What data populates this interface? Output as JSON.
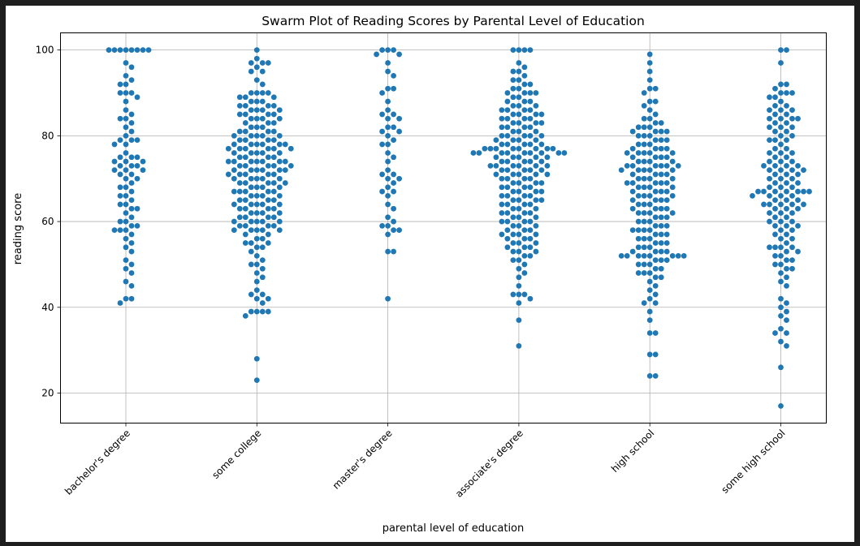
{
  "chart_data": {
    "type": "scatter",
    "subtype": "swarm",
    "title": "Swarm Plot of Reading Scores by Parental Level of Education",
    "xlabel": "parental level of education",
    "ylabel": "reading score",
    "ylim": [
      13,
      104
    ],
    "yticks": [
      20,
      40,
      60,
      80,
      100
    ],
    "grid": true,
    "marker_color": "#1f77b4",
    "categories": [
      "bachelor's degree",
      "some college",
      "master's degree",
      "associate's degree",
      "high school",
      "some high school"
    ],
    "series": [
      {
        "name": "bachelor's degree",
        "values": [
          100,
          100,
          100,
          100,
          100,
          100,
          100,
          100,
          97,
          96,
          94,
          93,
          92,
          92,
          90,
          90,
          90,
          89,
          88,
          86,
          85,
          84,
          84,
          83,
          82,
          81,
          80,
          79,
          79,
          79,
          78,
          78,
          76,
          75,
          75,
          75,
          74,
          74,
          74,
          73,
          73,
          73,
          72,
          72,
          72,
          71,
          71,
          70,
          70,
          69,
          68,
          68,
          67,
          66,
          66,
          65,
          64,
          64,
          63,
          63,
          62,
          61,
          60,
          60,
          59,
          59,
          58,
          58,
          58,
          57,
          56,
          55,
          54,
          53,
          51,
          50,
          49,
          48,
          46,
          45,
          42,
          42,
          41
        ]
      },
      {
        "name": "some college",
        "values": [
          100,
          98,
          97,
          97,
          97,
          96,
          95,
          95,
          93,
          92,
          90,
          90,
          90,
          90,
          89,
          89,
          89,
          88,
          88,
          88,
          87,
          87,
          87,
          87,
          86,
          86,
          86,
          86,
          85,
          85,
          85,
          85,
          84,
          84,
          84,
          84,
          83,
          83,
          83,
          82,
          82,
          82,
          81,
          81,
          81,
          81,
          80,
          80,
          80,
          80,
          80,
          79,
          79,
          79,
          79,
          78,
          78,
          78,
          78,
          78,
          78,
          77,
          77,
          77,
          77,
          77,
          77,
          76,
          76,
          76,
          76,
          76,
          75,
          75,
          75,
          75,
          74,
          74,
          74,
          74,
          74,
          74,
          74,
          73,
          73,
          73,
          73,
          73,
          72,
          72,
          72,
          72,
          72,
          72,
          71,
          71,
          71,
          71,
          71,
          70,
          70,
          70,
          70,
          70,
          69,
          69,
          69,
          69,
          69,
          68,
          68,
          68,
          68,
          67,
          67,
          67,
          67,
          67,
          66,
          66,
          66,
          66,
          65,
          65,
          65,
          65,
          64,
          64,
          64,
          64,
          64,
          63,
          63,
          63,
          63,
          62,
          62,
          62,
          62,
          61,
          61,
          61,
          61,
          60,
          60,
          60,
          60,
          60,
          59,
          59,
          59,
          59,
          58,
          58,
          58,
          58,
          58,
          57,
          57,
          56,
          56,
          55,
          55,
          55,
          54,
          54,
          53,
          52,
          51,
          50,
          50,
          49,
          48,
          47,
          46,
          44,
          43,
          43,
          42,
          42,
          41,
          39,
          39,
          39,
          39,
          38,
          28,
          23
        ]
      },
      {
        "name": "master's degree",
        "values": [
          100,
          100,
          100,
          99,
          99,
          97,
          95,
          94,
          91,
          91,
          90,
          88,
          86,
          85,
          85,
          84,
          84,
          82,
          82,
          81,
          81,
          80,
          79,
          78,
          78,
          76,
          75,
          74,
          72,
          71,
          71,
          70,
          70,
          69,
          68,
          67,
          67,
          66,
          64,
          63,
          61,
          60,
          59,
          59,
          58,
          58,
          57,
          53,
          53,
          42
        ]
      },
      {
        "name": "associate's degree",
        "values": [
          100,
          100,
          100,
          100,
          97,
          96,
          95,
          95,
          94,
          93,
          93,
          92,
          92,
          91,
          91,
          90,
          90,
          90,
          90,
          89,
          89,
          88,
          88,
          88,
          87,
          87,
          87,
          86,
          86,
          86,
          86,
          85,
          85,
          85,
          85,
          84,
          84,
          84,
          84,
          83,
          83,
          83,
          83,
          82,
          82,
          82,
          82,
          81,
          81,
          81,
          80,
          80,
          80,
          80,
          80,
          79,
          79,
          79,
          79,
          78,
          78,
          78,
          78,
          78,
          77,
          77,
          77,
          77,
          77,
          77,
          77,
          77,
          76,
          76,
          76,
          76,
          76,
          76,
          76,
          76,
          76,
          75,
          75,
          75,
          75,
          75,
          74,
          74,
          74,
          74,
          74,
          73,
          73,
          73,
          73,
          73,
          73,
          72,
          72,
          72,
          72,
          72,
          71,
          71,
          71,
          71,
          71,
          70,
          70,
          70,
          70,
          69,
          69,
          69,
          69,
          68,
          68,
          68,
          68,
          67,
          67,
          67,
          67,
          66,
          66,
          66,
          66,
          65,
          65,
          65,
          65,
          64,
          64,
          64,
          64,
          63,
          63,
          63,
          62,
          62,
          62,
          62,
          61,
          61,
          61,
          60,
          60,
          60,
          60,
          59,
          59,
          59,
          58,
          58,
          58,
          57,
          57,
          57,
          57,
          56,
          56,
          56,
          55,
          55,
          55,
          54,
          54,
          54,
          53,
          53,
          53,
          52,
          52,
          51,
          51,
          50,
          49,
          48,
          47,
          45,
          43,
          43,
          43,
          42,
          41,
          37,
          31
        ]
      },
      {
        "name": "high school",
        "values": [
          99,
          97,
          95,
          93,
          91,
          91,
          90,
          88,
          88,
          87,
          86,
          85,
          84,
          84,
          83,
          83,
          82,
          82,
          82,
          81,
          81,
          81,
          81,
          80,
          80,
          80,
          79,
          79,
          79,
          78,
          78,
          78,
          77,
          77,
          77,
          77,
          76,
          76,
          76,
          76,
          76,
          75,
          75,
          75,
          75,
          74,
          74,
          74,
          74,
          73,
          73,
          73,
          73,
          73,
          73,
          72,
          72,
          72,
          72,
          72,
          71,
          71,
          71,
          71,
          70,
          70,
          70,
          70,
          69,
          69,
          69,
          69,
          69,
          68,
          68,
          68,
          68,
          67,
          67,
          67,
          67,
          66,
          66,
          66,
          66,
          65,
          65,
          65,
          65,
          64,
          64,
          64,
          63,
          63,
          63,
          63,
          62,
          62,
          62,
          62,
          61,
          61,
          61,
          60,
          60,
          60,
          59,
          59,
          59,
          58,
          58,
          58,
          58,
          57,
          57,
          57,
          56,
          56,
          56,
          55,
          55,
          55,
          54,
          54,
          54,
          53,
          53,
          53,
          53,
          52,
          52,
          52,
          52,
          52,
          52,
          52,
          52,
          51,
          51,
          51,
          50,
          50,
          50,
          49,
          49,
          48,
          48,
          48,
          47,
          47,
          46,
          45,
          44,
          43,
          42,
          41,
          41,
          39,
          37,
          34,
          34,
          29,
          29,
          24,
          24
        ]
      },
      {
        "name": "some high school",
        "values": [
          100,
          100,
          97,
          92,
          92,
          91,
          90,
          90,
          90,
          89,
          89,
          88,
          87,
          87,
          86,
          86,
          86,
          85,
          85,
          84,
          84,
          84,
          84,
          83,
          83,
          82,
          82,
          82,
          81,
          81,
          80,
          80,
          79,
          79,
          79,
          78,
          77,
          77,
          76,
          76,
          76,
          75,
          75,
          74,
          74,
          74,
          73,
          73,
          73,
          73,
          72,
          72,
          72,
          72,
          71,
          71,
          71,
          70,
          70,
          70,
          69,
          69,
          69,
          68,
          68,
          68,
          67,
          67,
          67,
          67,
          67,
          67,
          67,
          66,
          66,
          66,
          66,
          65,
          65,
          65,
          64,
          64,
          64,
          64,
          64,
          63,
          63,
          63,
          62,
          62,
          62,
          61,
          61,
          60,
          60,
          60,
          59,
          59,
          59,
          58,
          58,
          57,
          57,
          56,
          56,
          55,
          54,
          54,
          54,
          54,
          53,
          53,
          52,
          52,
          51,
          51,
          50,
          50,
          49,
          49,
          48,
          47,
          46,
          45,
          42,
          41,
          40,
          39,
          38,
          37,
          35,
          34,
          34,
          32,
          31,
          26,
          17
        ]
      }
    ]
  }
}
